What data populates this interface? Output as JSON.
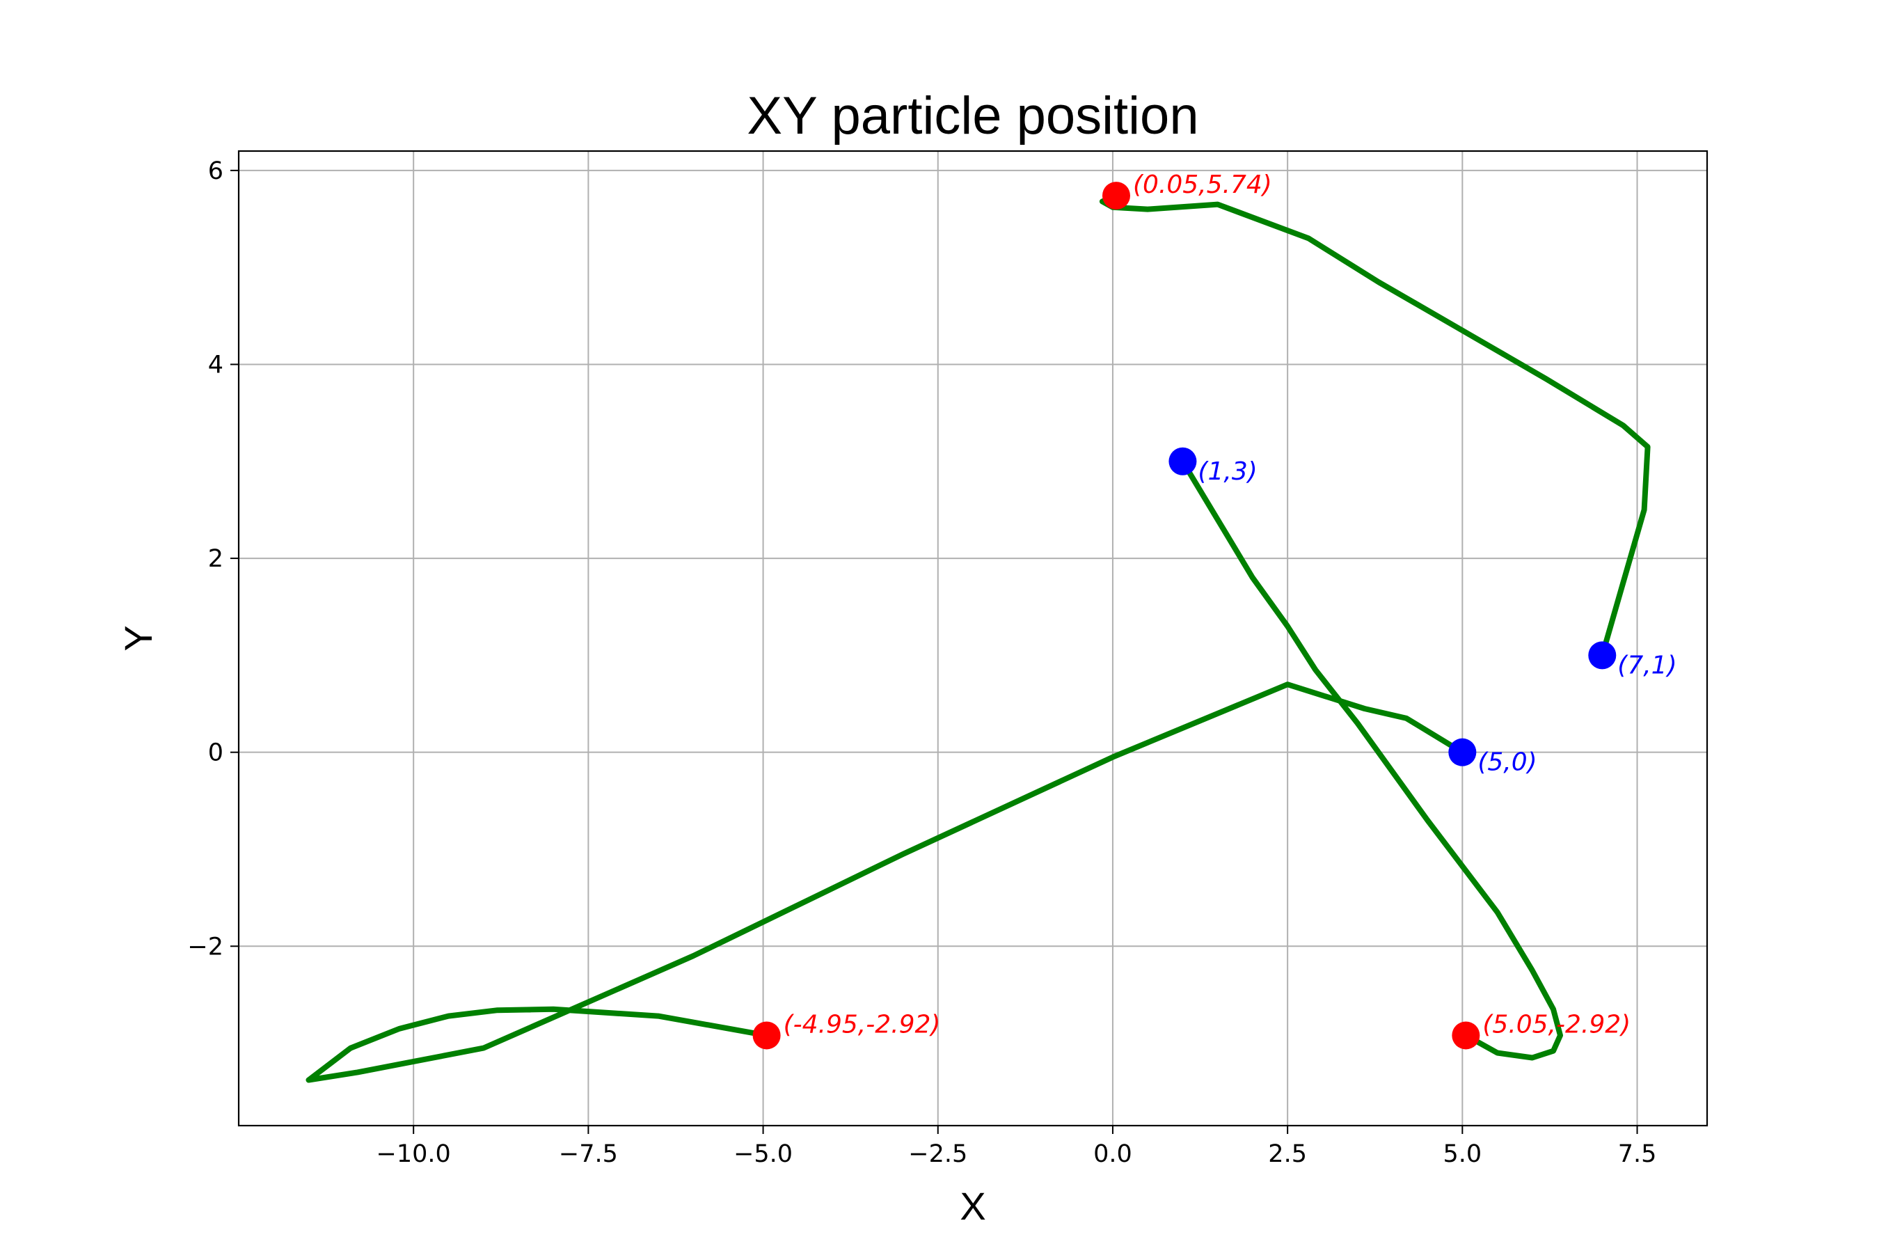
{
  "chart_data": {
    "type": "line",
    "title": "XY particle position",
    "xlabel": "X",
    "ylabel": "Y",
    "xlim": [
      -12.5,
      8.5
    ],
    "ylim": [
      -3.85,
      6.2
    ],
    "grid": true,
    "x_ticks": [
      -10.0,
      -7.5,
      -5.0,
      -2.5,
      0.0,
      2.5,
      5.0,
      7.5
    ],
    "x_tick_labels": [
      "−10.0",
      "−7.5",
      "−5.0",
      "−2.5",
      "0.0",
      "2.5",
      "5.0",
      "7.5"
    ],
    "y_ticks": [
      -2,
      0,
      2,
      4,
      6
    ],
    "y_tick_labels": [
      "−2",
      "0",
      "2",
      "4",
      "6"
    ],
    "line_color": "#008000",
    "start_color": "#0000ff",
    "end_color": "#ff0000",
    "series": [
      {
        "x": [
          7,
          7.3,
          7.6,
          7.65,
          7.3,
          6.2,
          5,
          3.8,
          2.8,
          1.5,
          0.5,
          0,
          -0.15,
          0.05
        ],
        "y": [
          1,
          1.75,
          2.5,
          3.15,
          3.37,
          3.85,
          4.35,
          4.85,
          5.3,
          5.65,
          5.6,
          5.62,
          5.68,
          5.74
        ]
      },
      {
        "x": [
          1,
          1.5,
          2,
          2.5,
          2.9,
          3.5,
          4.5,
          5.5,
          6,
          6.3,
          6.4,
          6.3,
          6,
          5.5,
          5.05
        ],
        "y": [
          3,
          2.4,
          1.8,
          1.3,
          0.85,
          0.3,
          -0.7,
          -1.65,
          -2.25,
          -2.65,
          -2.92,
          -3.08,
          -3.15,
          -3.1,
          -2.92
        ]
      },
      {
        "x": [
          5,
          4.2,
          3.6,
          2.5,
          0,
          -3,
          -6,
          -9,
          -10.8,
          -11.5,
          -10.9,
          -10.2,
          -9.5,
          -8.8,
          -8,
          -6.5,
          -4.95
        ],
        "y": [
          0,
          0.35,
          0.45,
          0.7,
          -0.05,
          -1.05,
          -2.1,
          -3.05,
          -3.3,
          -3.38,
          -3.05,
          -2.85,
          -2.72,
          -2.66,
          -2.65,
          -2.72,
          -2.92
        ]
      }
    ],
    "points": [
      {
        "x": 7,
        "y": 1,
        "label": "(7,1)",
        "kind": "start"
      },
      {
        "x": 1,
        "y": 3,
        "label": "(1,3)",
        "kind": "start"
      },
      {
        "x": 5,
        "y": 0,
        "label": "(5,0)",
        "kind": "start"
      },
      {
        "x": 0.05,
        "y": 5.74,
        "label": "(0.05,5.74)",
        "kind": "end"
      },
      {
        "x": 5.05,
        "y": -2.92,
        "label": "(5.05,-2.92)",
        "kind": "end"
      },
      {
        "x": -4.95,
        "y": -2.92,
        "label": "(-4.95,-2.92)",
        "kind": "end"
      }
    ]
  }
}
